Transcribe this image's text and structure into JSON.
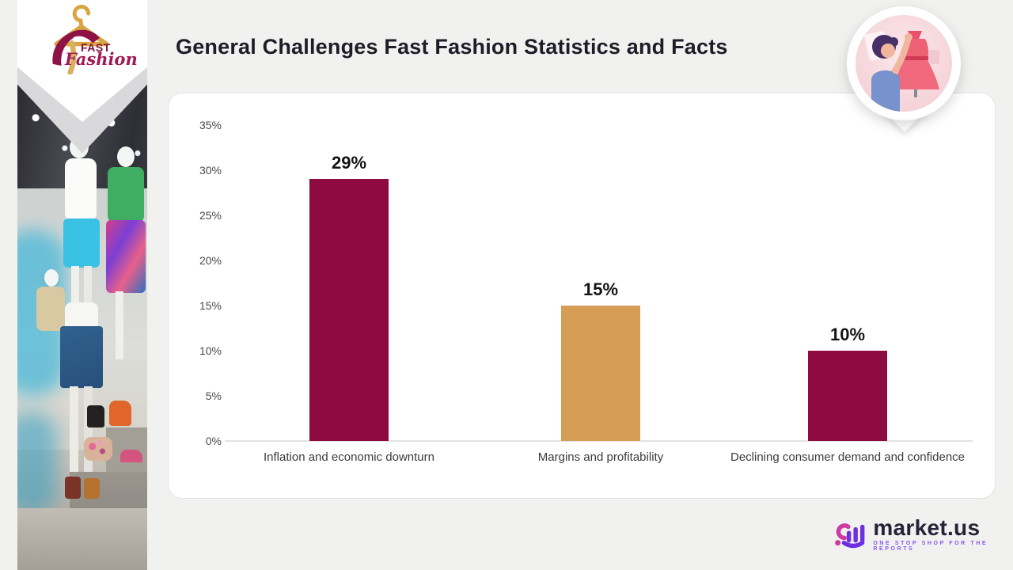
{
  "page": {
    "title": "General Challenges Fast Fashion Statistics and Facts"
  },
  "brand_badge": {
    "name_top": "FAST",
    "name_bottom": "Fashion"
  },
  "chart_data": {
    "type": "bar",
    "title": "General Challenges Fast Fashion Statistics and Facts",
    "categories": [
      "Inflation and economic downturn",
      "Margins and profitability",
      "Declining consumer demand and confidence"
    ],
    "values": [
      29,
      15,
      10
    ],
    "value_labels": [
      "29%",
      "15%",
      "10%"
    ],
    "bar_colors": [
      "#8e0b42",
      "#d69e55",
      "#8e0b42"
    ],
    "ylim": [
      0,
      35
    ],
    "ytick_step": 5,
    "ytick_labels": [
      "0%",
      "5%",
      "10%",
      "15%",
      "20%",
      "25%",
      "30%",
      "35%"
    ],
    "grid": false,
    "legend": "none",
    "xlabel": "",
    "ylabel": ""
  },
  "footer_logo": {
    "brand": "market.us",
    "tagline": "ONE STOP SHOP FOR THE REPORTS"
  },
  "colors": {
    "bar_maroon": "#8e0b42",
    "bar_gold": "#d69e55",
    "title_text": "#1d1d27",
    "axis_text": "#4a4a4a",
    "logo_maroon": "#8e1246",
    "logo_gold": "#d9a441",
    "accent_purple": "#6d2fe0",
    "accent_pink": "#cd3aa4"
  }
}
